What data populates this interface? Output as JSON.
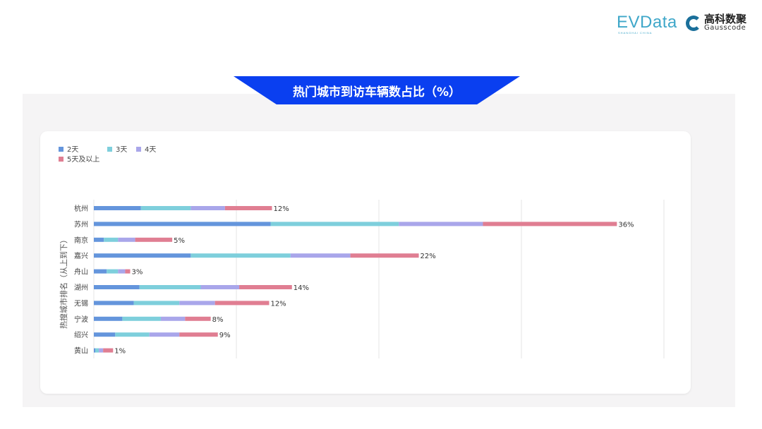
{
  "header": {
    "logo_evdata": "EVData",
    "logo_evdata_sub": "SHANGHAI CHINA",
    "logo_gauss_cn": "高科数聚",
    "logo_gauss_en": "Gausscode"
  },
  "chart_data": {
    "type": "bar",
    "orientation": "horizontal",
    "stacked": true,
    "title": "热门城市到访车辆数占比（%）",
    "ylabel": "热搜城市排名（从上到下）",
    "xlabel": "",
    "xlim": [
      0,
      40
    ],
    "grid": true,
    "legend_position": "top-left",
    "categories": [
      "杭州",
      "苏州",
      "南京",
      "嘉兴",
      "舟山",
      "湖州",
      "无锡",
      "宁波",
      "绍兴",
      "黄山"
    ],
    "series": [
      {
        "name": "2天",
        "color": "#6495dc",
        "values": [
          3.3,
          12.4,
          0.7,
          6.8,
          0.9,
          3.2,
          2.8,
          2.0,
          1.5,
          0.1
        ]
      },
      {
        "name": "3天",
        "color": "#7ecfdc",
        "values": [
          3.5,
          9.0,
          1.0,
          7.0,
          0.8,
          4.3,
          3.2,
          2.7,
          2.4,
          0.25
        ]
      },
      {
        "name": "4天",
        "color": "#a9a6ea",
        "values": [
          2.4,
          5.9,
          1.2,
          4.2,
          0.5,
          2.7,
          2.5,
          1.7,
          2.1,
          0.3
        ]
      },
      {
        "name": "5天及以上",
        "color": "#e07e92",
        "values": [
          3.3,
          9.4,
          2.6,
          4.8,
          0.35,
          3.7,
          3.8,
          1.8,
          2.7,
          0.7
        ]
      }
    ],
    "total_labels": [
      "12%",
      "36%",
      "5%",
      "22%",
      "3%",
      "14%",
      "12%",
      "8%",
      "9%",
      "1%"
    ]
  }
}
